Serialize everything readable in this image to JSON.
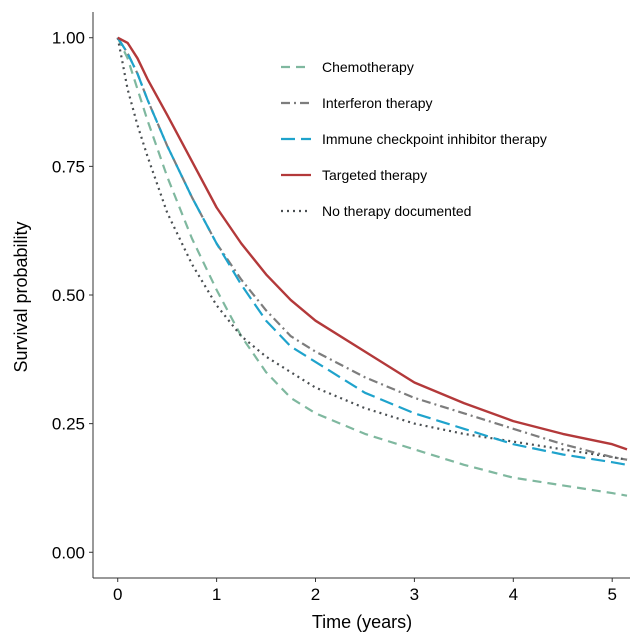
{
  "chart_data": {
    "type": "line",
    "title": "",
    "xlabel": "Time (years)",
    "ylabel": "Survival probability",
    "xlim": [
      -0.25,
      5.18
    ],
    "ylim": [
      -0.05,
      1.05
    ],
    "xticks": [
      0,
      1,
      2,
      3,
      4,
      5
    ],
    "xtick_labels": [
      "0",
      "1",
      "2",
      "3",
      "4",
      "5"
    ],
    "yticks": [
      0,
      0.25,
      0.5,
      0.75,
      1.0
    ],
    "ytick_labels": [
      "0.00",
      "0.25",
      "0.50",
      "0.75",
      "1.00"
    ],
    "grid": false,
    "legend_position": "top-right",
    "series": [
      {
        "name": "Chemotherapy",
        "color": "#7fb89f",
        "dash": "9,6",
        "x": [
          0,
          0.1,
          0.2,
          0.3,
          0.5,
          0.75,
          1.0,
          1.25,
          1.5,
          1.75,
          2.0,
          2.5,
          3.0,
          3.5,
          4.0,
          4.5,
          5.0,
          5.15
        ],
        "y": [
          1.0,
          0.96,
          0.9,
          0.84,
          0.73,
          0.61,
          0.51,
          0.42,
          0.35,
          0.3,
          0.27,
          0.23,
          0.2,
          0.17,
          0.145,
          0.13,
          0.115,
          0.11
        ]
      },
      {
        "name": "Interferon therapy",
        "color": "#7d7d7d",
        "dash": "9,4,2,4",
        "x": [
          0,
          0.1,
          0.2,
          0.3,
          0.5,
          0.75,
          1.0,
          1.25,
          1.5,
          1.75,
          2.0,
          2.5,
          3.0,
          3.5,
          4.0,
          4.5,
          5.0,
          5.15
        ],
        "y": [
          1.0,
          0.97,
          0.93,
          0.88,
          0.79,
          0.69,
          0.6,
          0.53,
          0.47,
          0.42,
          0.39,
          0.34,
          0.3,
          0.27,
          0.24,
          0.21,
          0.185,
          0.18
        ]
      },
      {
        "name": "Immune checkpoint inhibitor therapy",
        "color": "#1fa3cc",
        "dash": "14,6",
        "x": [
          0,
          0.1,
          0.2,
          0.3,
          0.5,
          0.75,
          1.0,
          1.25,
          1.5,
          1.75,
          2.0,
          2.5,
          3.0,
          3.5,
          4.0,
          4.5,
          5.0,
          5.15
        ],
        "y": [
          1.0,
          0.97,
          0.93,
          0.88,
          0.79,
          0.69,
          0.6,
          0.52,
          0.45,
          0.4,
          0.37,
          0.31,
          0.27,
          0.24,
          0.21,
          0.19,
          0.175,
          0.17
        ]
      },
      {
        "name": "Targeted therapy",
        "color": "#b3393a",
        "dash": "",
        "x": [
          0,
          0.1,
          0.2,
          0.3,
          0.5,
          0.75,
          1.0,
          1.25,
          1.5,
          1.75,
          2.0,
          2.5,
          3.0,
          3.5,
          4.0,
          4.5,
          5.0,
          5.15
        ],
        "y": [
          1.0,
          0.99,
          0.96,
          0.92,
          0.85,
          0.76,
          0.67,
          0.6,
          0.54,
          0.49,
          0.45,
          0.39,
          0.33,
          0.29,
          0.255,
          0.23,
          0.21,
          0.2
        ]
      },
      {
        "name": "No therapy documented",
        "color": "#4a4f52",
        "dash": "2,4",
        "x": [
          0,
          0.05,
          0.1,
          0.2,
          0.3,
          0.5,
          0.75,
          1.0,
          1.25,
          1.5,
          1.75,
          2.0,
          2.5,
          3.0,
          3.5,
          4.0,
          4.5,
          5.0,
          5.15
        ],
        "y": [
          1.0,
          0.95,
          0.9,
          0.83,
          0.77,
          0.66,
          0.56,
          0.48,
          0.42,
          0.38,
          0.35,
          0.32,
          0.28,
          0.25,
          0.23,
          0.215,
          0.2,
          0.185,
          0.18
        ]
      }
    ]
  }
}
